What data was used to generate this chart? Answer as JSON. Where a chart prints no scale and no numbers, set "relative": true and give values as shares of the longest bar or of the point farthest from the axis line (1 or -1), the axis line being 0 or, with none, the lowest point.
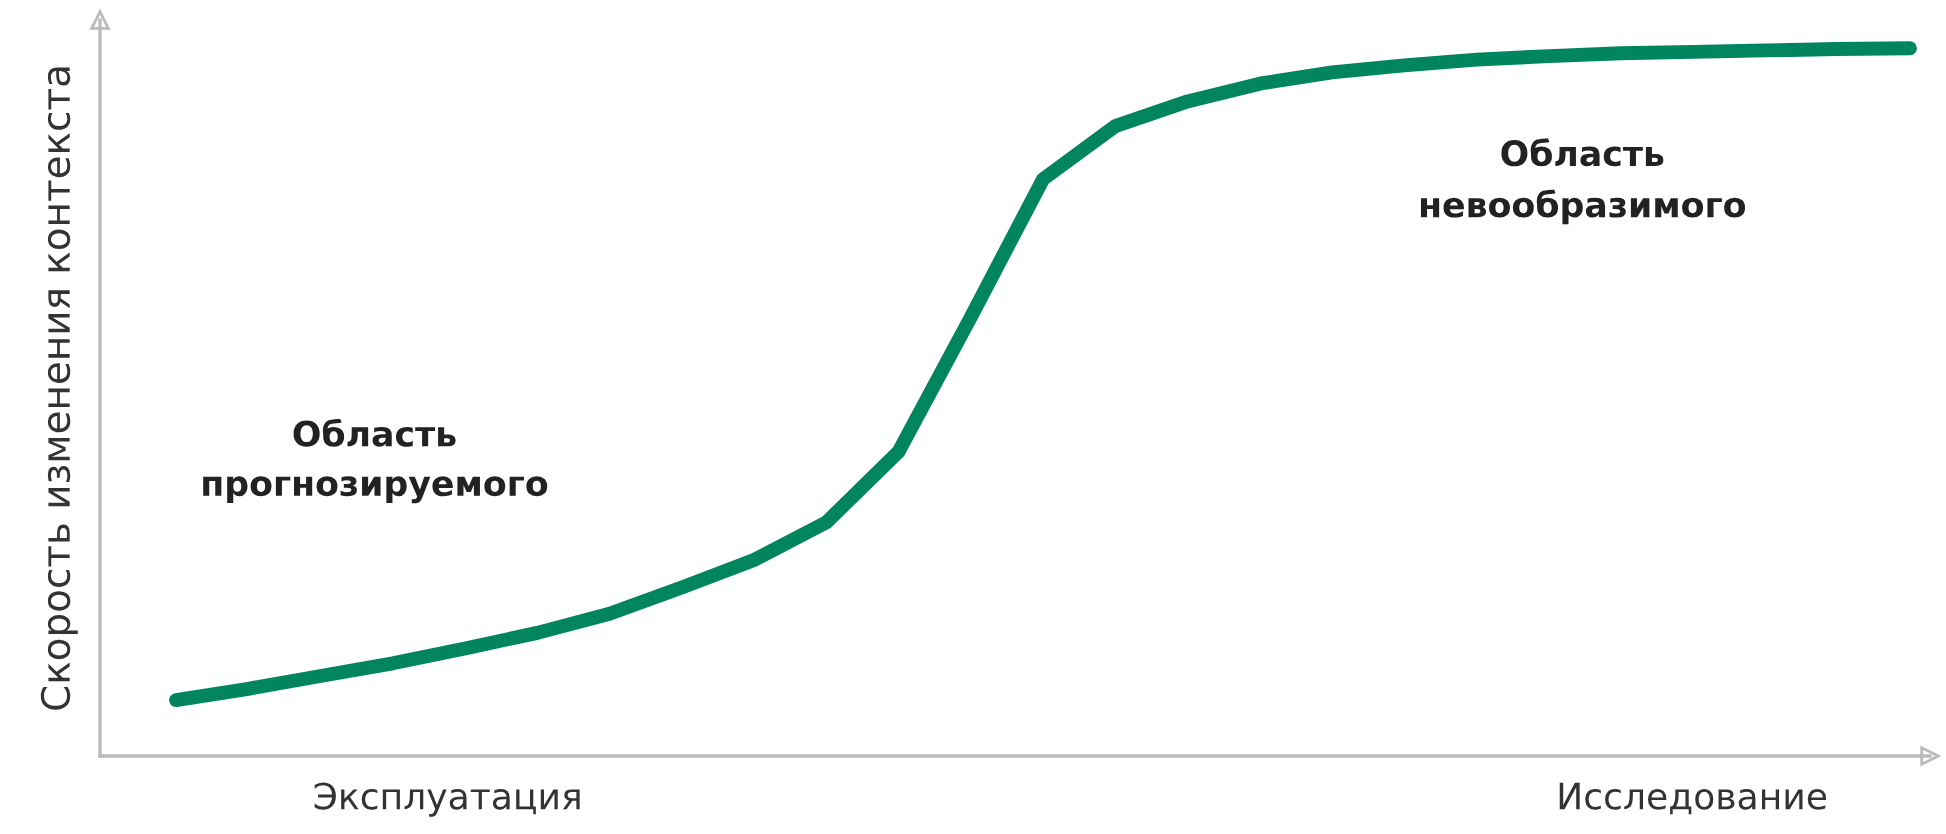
{
  "chart_data": {
    "type": "line",
    "relative": true,
    "ylabel": "Скорость изменения контекста",
    "categories": [
      null,
      null,
      null,
      null,
      null,
      null,
      null,
      null,
      null,
      null,
      null,
      null,
      null,
      null,
      null,
      null,
      null,
      null,
      null,
      null,
      null,
      null,
      null,
      null,
      null
    ],
    "series": [
      {
        "color": "#00855f",
        "values": [
          0.079,
          0.095,
          0.113,
          0.131,
          0.152,
          0.174,
          0.201,
          0.238,
          0.277,
          0.33,
          0.43,
          0.62,
          0.815,
          0.89,
          0.925,
          0.95,
          0.966,
          0.976,
          0.984,
          0.989,
          0.993,
          0.995,
          0.997,
          0.999,
          1.0
        ]
      }
    ],
    "annotations": [
      "Эксплуатация",
      "Исследование",
      "Область\nпрогнозируемого",
      "Область\nневообразимого"
    ],
    "marker": "none",
    "line_style": "solid"
  }
}
